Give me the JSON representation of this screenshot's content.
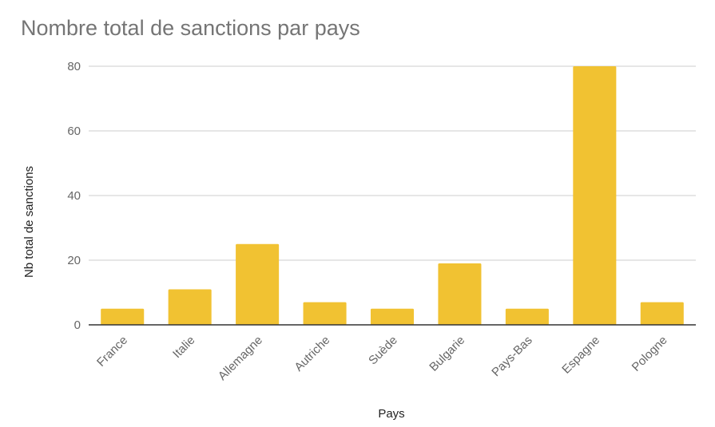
{
  "chart_data": {
    "type": "bar",
    "title": "Nombre total de sanctions par pays",
    "xlabel": "Pays",
    "ylabel": "Nb total de sanctions",
    "categories": [
      "France",
      "Italie",
      "Allemagne",
      "Autriche",
      "Suède",
      "Bulgarie",
      "Pays-Bas",
      "Espagne",
      "Pologne"
    ],
    "values": [
      5,
      11,
      25,
      7,
      5,
      19,
      5,
      80,
      7
    ],
    "ylim": [
      0,
      80
    ],
    "yticks": [
      0,
      20,
      40,
      60,
      80
    ],
    "grid": true,
    "bar_color": "#F1C232",
    "legend": "none"
  }
}
